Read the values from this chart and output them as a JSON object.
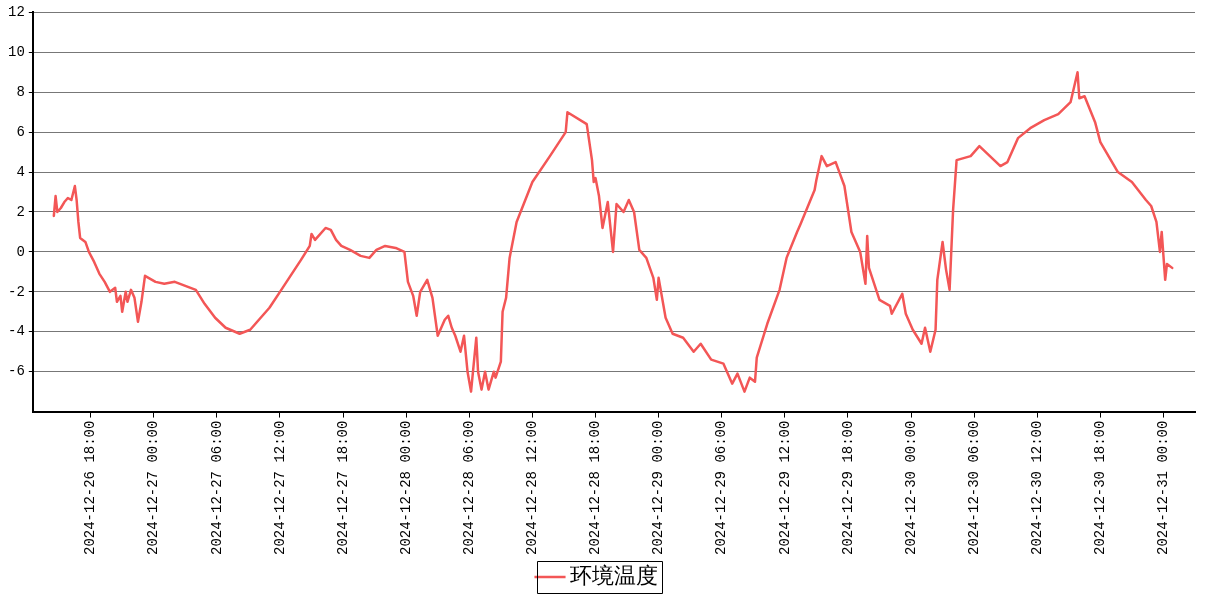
{
  "chart_data": {
    "type": "line",
    "legend": "bottom",
    "grid": "y",
    "marker": "none",
    "xlim": [
      "2024-12-26T12:30",
      "2024-12-31T03:00"
    ],
    "ylim": [
      -8,
      12
    ],
    "yticks": [
      -6,
      -4,
      -2,
      0,
      2,
      4,
      6,
      8,
      10,
      12
    ],
    "xticks": [
      {
        "value": "2024-12-26T18:00",
        "label": "2024-12-26 18:00"
      },
      {
        "value": "2024-12-27T00:00",
        "label": "2024-12-27 00:00"
      },
      {
        "value": "2024-12-27T06:00",
        "label": "2024-12-27 06:00"
      },
      {
        "value": "2024-12-27T12:00",
        "label": "2024-12-27 12:00"
      },
      {
        "value": "2024-12-27T18:00",
        "label": "2024-12-27 18:00"
      },
      {
        "value": "2024-12-28T00:00",
        "label": "2024-12-28 00:00"
      },
      {
        "value": "2024-12-28T06:00",
        "label": "2024-12-28 06:00"
      },
      {
        "value": "2024-12-28T12:00",
        "label": "2024-12-28 12:00"
      },
      {
        "value": "2024-12-28T18:00",
        "label": "2024-12-28 18:00"
      },
      {
        "value": "2024-12-29T00:00",
        "label": "2024-12-29 00:00"
      },
      {
        "value": "2024-12-29T06:00",
        "label": "2024-12-29 06:00"
      },
      {
        "value": "2024-12-29T12:00",
        "label": "2024-12-29 12:00"
      },
      {
        "value": "2024-12-29T18:00",
        "label": "2024-12-29 18:00"
      },
      {
        "value": "2024-12-30T00:00",
        "label": "2024-12-30 00:00"
      },
      {
        "value": "2024-12-30T06:00",
        "label": "2024-12-30 06:00"
      },
      {
        "value": "2024-12-30T12:00",
        "label": "2024-12-30 12:00"
      },
      {
        "value": "2024-12-30T18:00",
        "label": "2024-12-30 18:00"
      },
      {
        "value": "2024-12-31T00:00",
        "label": "2024-12-31 00:00"
      }
    ],
    "series": [
      {
        "name": "环境温度",
        "color": "#f35656",
        "x": [
          "2024-12-26T14:30",
          "2024-12-26T14:40",
          "2024-12-26T14:50",
          "2024-12-26T15:10",
          "2024-12-26T15:30",
          "2024-12-26T15:50",
          "2024-12-26T16:10",
          "2024-12-26T16:30",
          "2024-12-26T16:40",
          "2024-12-26T16:50",
          "2024-12-26T17:00",
          "2024-12-26T17:30",
          "2024-12-26T17:50",
          "2024-12-26T18:20",
          "2024-12-26T18:50",
          "2024-12-26T19:20",
          "2024-12-26T19:50",
          "2024-12-26T20:20",
          "2024-12-26T20:30",
          "2024-12-26T20:50",
          "2024-12-26T21:00",
          "2024-12-26T21:20",
          "2024-12-26T21:30",
          "2024-12-26T21:50",
          "2024-12-26T22:10",
          "2024-12-26T22:30",
          "2024-12-26T22:50",
          "2024-12-26T23:10",
          "2024-12-27T00:10",
          "2024-12-27T01:00",
          "2024-12-27T02:00",
          "2024-12-27T03:00",
          "2024-12-27T04:00",
          "2024-12-27T04:50",
          "2024-12-27T05:50",
          "2024-12-27T06:50",
          "2024-12-27T08:10",
          "2024-12-27T09:10",
          "2024-12-27T10:10",
          "2024-12-27T11:00",
          "2024-12-27T12:00",
          "2024-12-27T13:00",
          "2024-12-27T14:00",
          "2024-12-27T14:50",
          "2024-12-27T15:00",
          "2024-12-27T15:20",
          "2024-12-27T16:20",
          "2024-12-27T16:50",
          "2024-12-27T17:20",
          "2024-12-27T17:50",
          "2024-12-27T18:40",
          "2024-12-27T19:40",
          "2024-12-27T20:30",
          "2024-12-27T21:10",
          "2024-12-27T22:00",
          "2024-12-27T23:00",
          "2024-12-27T23:50",
          "2024-12-28T00:10",
          "2024-12-28T00:40",
          "2024-12-28T01:00",
          "2024-12-28T01:20",
          "2024-12-28T02:00",
          "2024-12-28T02:30",
          "2024-12-28T03:00",
          "2024-12-28T03:40",
          "2024-12-28T04:00",
          "2024-12-28T04:20",
          "2024-12-28T04:40",
          "2024-12-28T05:10",
          "2024-12-28T05:30",
          "2024-12-28T05:50",
          "2024-12-28T06:10",
          "2024-12-28T06:40",
          "2024-12-28T06:50",
          "2024-12-28T07:10",
          "2024-12-28T07:30",
          "2024-12-28T07:50",
          "2024-12-28T08:20",
          "2024-12-28T08:30",
          "2024-12-28T09:00",
          "2024-12-28T09:10",
          "2024-12-28T09:30",
          "2024-12-28T09:50",
          "2024-12-28T10:30",
          "2024-12-28T12:00",
          "2024-12-28T13:40",
          "2024-12-28T15:10",
          "2024-12-28T15:20",
          "2024-12-28T17:10",
          "2024-12-28T17:40",
          "2024-12-28T17:50",
          "2024-12-28T18:00",
          "2024-12-28T18:20",
          "2024-12-28T18:40",
          "2024-12-28T19:10",
          "2024-12-28T19:40",
          "2024-12-28T20:00",
          "2024-12-28T20:40",
          "2024-12-28T21:10",
          "2024-12-28T21:40",
          "2024-12-28T22:10",
          "2024-12-28T22:50",
          "2024-12-28T23:30",
          "2024-12-28T23:50",
          "2024-12-29T00:00",
          "2024-12-29T00:40",
          "2024-12-29T01:20",
          "2024-12-29T02:20",
          "2024-12-29T03:20",
          "2024-12-29T04:00",
          "2024-12-29T05:00",
          "2024-12-29T06:10",
          "2024-12-29T07:00",
          "2024-12-29T07:30",
          "2024-12-29T08:10",
          "2024-12-29T08:40",
          "2024-12-29T09:10",
          "2024-12-29T09:20",
          "2024-12-29T10:20",
          "2024-12-29T11:30",
          "2024-12-29T12:10",
          "2024-12-29T13:10",
          "2024-12-29T13:30",
          "2024-12-29T14:50",
          "2024-12-29T15:00",
          "2024-12-29T15:30",
          "2024-12-29T16:00",
          "2024-12-29T16:50",
          "2024-12-29T17:40",
          "2024-12-29T18:20",
          "2024-12-29T19:10",
          "2024-12-29T19:40",
          "2024-12-29T19:50",
          "2024-12-29T20:00",
          "2024-12-29T21:00",
          "2024-12-29T22:00",
          "2024-12-29T22:10",
          "2024-12-29T23:10",
          "2024-12-29T23:30",
          "2024-12-30T00:10",
          "2024-12-30T01:00",
          "2024-12-30T01:20",
          "2024-12-30T01:50",
          "2024-12-30T02:20",
          "2024-12-30T02:30",
          "2024-12-30T03:00",
          "2024-12-30T03:20",
          "2024-12-30T03:40",
          "2024-12-30T04:00",
          "2024-12-30T04:20",
          "2024-12-30T05:40",
          "2024-12-30T06:30",
          "2024-12-30T07:30",
          "2024-12-30T08:30",
          "2024-12-30T09:10",
          "2024-12-30T10:10",
          "2024-12-30T11:20",
          "2024-12-30T12:40",
          "2024-12-30T14:00",
          "2024-12-30T15:10",
          "2024-12-30T15:50",
          "2024-12-30T16:00",
          "2024-12-30T16:30",
          "2024-12-30T17:30",
          "2024-12-30T18:00",
          "2024-12-30T19:40",
          "2024-12-30T21:00",
          "2024-12-30T22:20",
          "2024-12-30T22:50",
          "2024-12-30T23:20",
          "2024-12-30T23:40",
          "2024-12-30T23:50",
          "2024-12-31T00:10",
          "2024-12-31T00:20",
          "2024-12-31T00:50"
        ],
        "values": [
          1.8,
          2.8,
          2.0,
          2.2,
          2.5,
          2.7,
          2.6,
          3.3,
          2.6,
          1.5,
          0.7,
          0.5,
          0.0,
          -0.5,
          -1.1,
          -1.5,
          -2.0,
          -1.8,
          -2.5,
          -2.2,
          -3.0,
          -2.0,
          -2.5,
          -1.9,
          -2.3,
          -3.5,
          -2.5,
          -1.2,
          -1.5,
          -1.6,
          -1.5,
          -1.7,
          -1.9,
          -2.6,
          -3.3,
          -3.8,
          -4.1,
          -3.9,
          -3.3,
          -2.8,
          -2.0,
          -1.2,
          -0.4,
          0.3,
          0.9,
          0.6,
          1.2,
          1.1,
          0.6,
          0.3,
          0.1,
          -0.2,
          -0.3,
          0.1,
          0.3,
          0.2,
          0.0,
          -1.5,
          -2.2,
          -3.2,
          -2.0,
          -1.4,
          -2.3,
          -4.2,
          -3.4,
          -3.2,
          -3.8,
          -4.2,
          -5.0,
          -4.2,
          -6.0,
          -7.0,
          -4.3,
          -6.0,
          -6.9,
          -6.0,
          -6.9,
          -6.0,
          -6.3,
          -5.5,
          -3.0,
          -2.3,
          -0.3,
          1.5,
          3.5,
          4.8,
          6.0,
          7.0,
          6.4,
          4.6,
          3.5,
          3.7,
          2.8,
          1.2,
          2.5,
          0.0,
          2.4,
          2.0,
          2.6,
          2.0,
          0.1,
          -0.3,
          -1.3,
          -2.4,
          -1.3,
          -3.3,
          -4.1,
          -4.3,
          -5.0,
          -4.6,
          -5.4,
          -5.6,
          -6.6,
          -6.1,
          -7.0,
          -6.3,
          -6.5,
          -5.3,
          -3.6,
          -1.9,
          -0.3,
          1.0,
          1.4,
          3.1,
          3.6,
          4.8,
          4.3,
          4.5,
          3.3,
          1.0,
          0.0,
          -1.6,
          0.8,
          -0.8,
          -2.4,
          -2.7,
          -3.1,
          -2.1,
          -3.1,
          -3.9,
          -4.6,
          -3.8,
          -5.0,
          -3.9,
          -1.4,
          0.5,
          -0.9,
          -1.9,
          2.1,
          4.6,
          4.8,
          5.3,
          4.8,
          4.3,
          4.5,
          5.7,
          6.2,
          6.6,
          6.9,
          7.5,
          9.0,
          7.7,
          7.8,
          6.5,
          5.5,
          4.0,
          3.5,
          2.6,
          2.3,
          1.5,
          0.0,
          1.0,
          -1.4,
          -0.6,
          -0.8
        ]
      }
    ]
  }
}
